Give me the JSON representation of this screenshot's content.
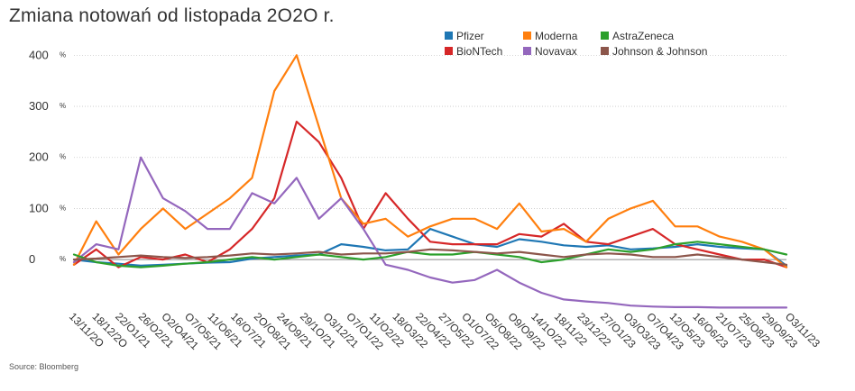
{
  "title": "Zmiana notowań od listopada 2O2O r.",
  "source": "Source: Bloomberg",
  "chart_data": {
    "type": "line",
    "title": "Zmiana notowań od listopada 2O2O r.",
    "xlabel": "",
    "ylabel": "",
    "ylim": [
      -95,
      420
    ],
    "y_ticks": [
      {
        "value": 0,
        "label": "0",
        "unit": "%"
      },
      {
        "value": 100,
        "label": "100",
        "unit": "%"
      },
      {
        "value": 200,
        "label": "200",
        "unit": "%"
      },
      {
        "value": 300,
        "label": "300",
        "unit": "%"
      },
      {
        "value": 400,
        "label": "400",
        "unit": "%"
      }
    ],
    "grid": "horizontal dotted",
    "legend_position": "top-right",
    "x_tick_labels": [
      "13/11/2O",
      "18/12/2O",
      "22/O1/21",
      "26/O2/21",
      "O2/O4/21",
      "O7/O5/21",
      "11/O6/21",
      "16/O7/21",
      "2O/O8/21",
      "24/O9/21",
      "29/1O/21",
      "O3/12/21",
      "O7/O1/22",
      "11/O2/22",
      "18/O3/22",
      "22/O4/22",
      "27/O5/22",
      "O1/O7/22",
      "O5/O8/22",
      "O9/O9/22",
      "14/1O/22",
      "18/11/22",
      "23/12/22",
      "27/O1/23",
      "O3/O3/23",
      "O7/O4/23",
      "12/O5/23",
      "16/O6/23",
      "21/O7/23",
      "25/O8/23",
      "29/O9/23",
      "O3/11/23"
    ],
    "series": [
      {
        "name": "Pfizer",
        "color": "#1f77b4",
        "values": [
          0,
          -5,
          -8,
          -12,
          -10,
          -8,
          -6,
          -5,
          2,
          5,
          8,
          10,
          30,
          25,
          18,
          20,
          60,
          45,
          30,
          25,
          40,
          35,
          28,
          25,
          28,
          20,
          22,
          25,
          30,
          25,
          22,
          20,
          -12
        ]
      },
      {
        "name": "BioNTech",
        "color": "#d62728",
        "values": [
          -10,
          20,
          -15,
          5,
          0,
          10,
          -5,
          20,
          60,
          120,
          270,
          230,
          160,
          60,
          130,
          80,
          35,
          30,
          30,
          30,
          50,
          45,
          70,
          35,
          30,
          45,
          60,
          30,
          20,
          10,
          0,
          0,
          -15
        ]
      },
      {
        "name": "Moderna",
        "color": "#ff7f0e",
        "values": [
          -10,
          75,
          10,
          60,
          100,
          60,
          90,
          120,
          160,
          330,
          400,
          260,
          120,
          70,
          80,
          45,
          65,
          80,
          80,
          60,
          110,
          55,
          60,
          35,
          80,
          100,
          115,
          65,
          65,
          45,
          35,
          20,
          -15
        ]
      },
      {
        "name": "Novavax",
        "color": "#9467bd",
        "values": [
          -5,
          30,
          20,
          200,
          120,
          95,
          60,
          60,
          130,
          110,
          160,
          80,
          120,
          60,
          -10,
          -20,
          -35,
          -45,
          -40,
          -20,
          -45,
          -65,
          -78,
          -82,
          -85,
          -90,
          -92,
          -93,
          -93,
          -94,
          -94,
          -94,
          -94
        ]
      },
      {
        "name": "AstraZeneca",
        "color": "#2ca02c",
        "values": [
          10,
          -5,
          -12,
          -15,
          -12,
          -8,
          -5,
          0,
          5,
          0,
          5,
          10,
          5,
          0,
          5,
          15,
          10,
          10,
          15,
          10,
          5,
          -5,
          0,
          10,
          20,
          15,
          20,
          30,
          35,
          30,
          25,
          20,
          10
        ]
      },
      {
        "name": "Johnson & Johnson",
        "color": "#8c564b",
        "values": [
          0,
          2,
          5,
          8,
          5,
          3,
          5,
          8,
          12,
          10,
          12,
          15,
          10,
          12,
          12,
          15,
          20,
          18,
          15,
          12,
          15,
          10,
          5,
          10,
          12,
          10,
          5,
          5,
          10,
          5,
          0,
          -5,
          -10
        ]
      }
    ]
  }
}
